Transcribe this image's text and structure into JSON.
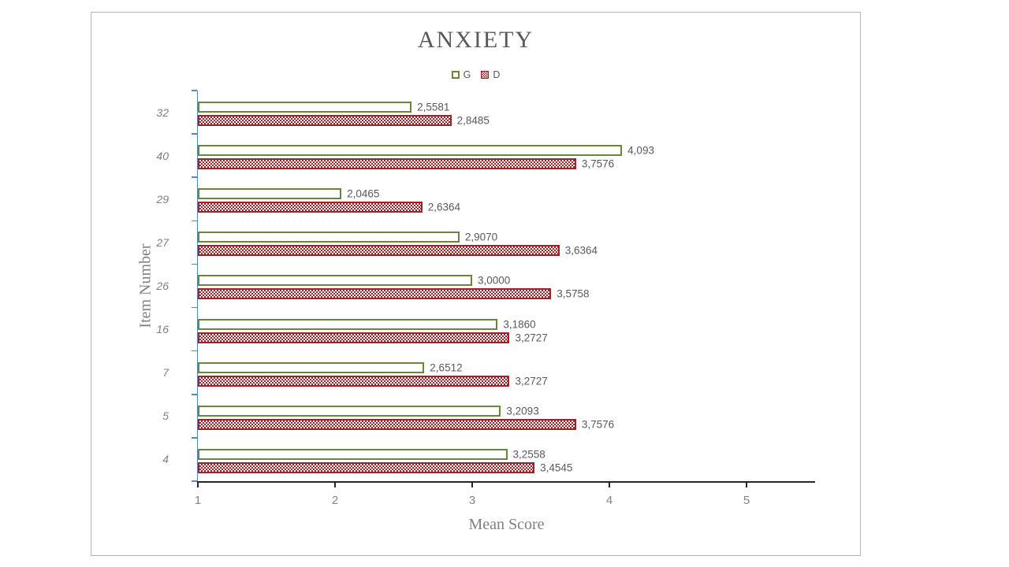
{
  "chart": {
    "title": "ANXIETY",
    "x_axis_title": "Mean Score",
    "y_axis_title": "Item Number",
    "legend": [
      {
        "label": "G"
      },
      {
        "label": "D"
      }
    ]
  },
  "chart_data": {
    "type": "bar",
    "orientation": "horizontal",
    "title": "ANXIETY",
    "xlabel": "Mean Score",
    "ylabel": "Item Number",
    "legend_position": "top-center",
    "grid": false,
    "categories": [
      "32",
      "40",
      "29",
      "27",
      "26",
      "16",
      "7",
      "5",
      "4"
    ],
    "series": [
      {
        "name": "G",
        "color": "#66873C",
        "fill_style": "white-with-outline",
        "values": [
          2.5581,
          4.093,
          2.0465,
          2.907,
          3.0,
          3.186,
          2.6512,
          3.2093,
          3.2558
        ],
        "labels": [
          "2,5581",
          "4,093",
          "2,0465",
          "2,9070",
          "3,0000",
          "3,1860",
          "2,6512",
          "3,2093",
          "3,2558"
        ]
      },
      {
        "name": "D",
        "color": "#A32026",
        "fill_style": "checker-pattern",
        "values": [
          2.8485,
          3.7576,
          2.6364,
          3.6364,
          3.5758,
          3.2727,
          3.2727,
          3.7576,
          3.4545
        ],
        "labels": [
          "2,8485",
          "3,7576",
          "2,6364",
          "3,6364",
          "3,5758",
          "3,2727",
          "3,2727",
          "3,7576",
          "3,4545"
        ]
      }
    ],
    "x_min": 1,
    "x_max": 5.5,
    "x_ticks": [
      "1",
      "2",
      "3",
      "4",
      "5"
    ],
    "axis_colors": {
      "y_axis": "#5b84b5",
      "x_axis": "#262626"
    }
  }
}
